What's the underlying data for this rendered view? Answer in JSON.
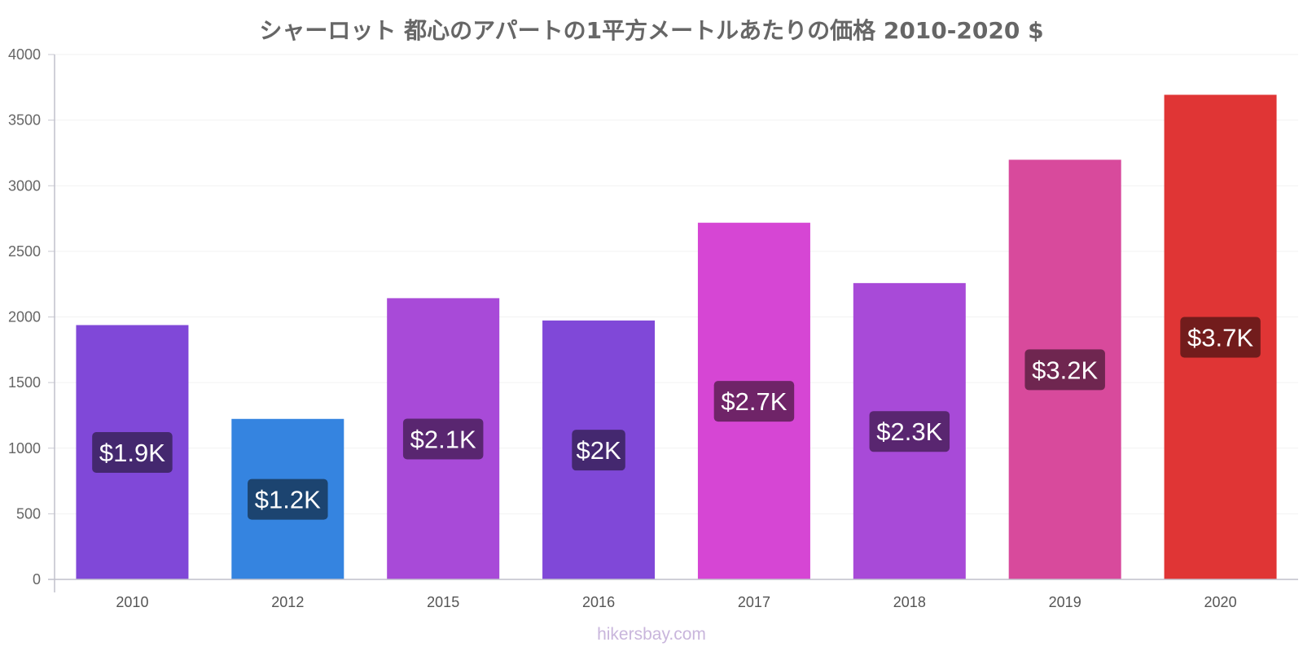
{
  "chart_data": {
    "type": "bar",
    "title": "シャーロット 都心のアパートの1平方メートルあたりの価格 2010-2020 $",
    "categories": [
      "2010",
      "2012",
      "2015",
      "2016",
      "2017",
      "2018",
      "2019",
      "2020"
    ],
    "values": [
      1935,
      1220,
      2140,
      1970,
      2715,
      2255,
      3195,
      3690
    ],
    "data_labels": [
      "$1.9K",
      "$1.2K",
      "$2.1K",
      "$2K",
      "$2.7K",
      "$2.3K",
      "$3.2K",
      "$3.7K"
    ],
    "bar_colors": [
      "#8048d8",
      "#3584e0",
      "#a84ad8",
      "#8048d8",
      "#d646d4",
      "#a84ad8",
      "#d84a9c",
      "#e03535"
    ],
    "label_bg_colors": [
      "#44286f",
      "#1c4470",
      "#592670",
      "#44286f",
      "#6f2468",
      "#592670",
      "#6f2650",
      "#721c1c"
    ],
    "ylim": [
      0,
      4000
    ],
    "yticks": [
      0,
      500,
      1000,
      1500,
      2000,
      2500,
      3000,
      3500,
      4000
    ],
    "xlabel": "",
    "ylabel": "",
    "grid": true,
    "legend": "none"
  },
  "watermark": "hikersbay.com"
}
